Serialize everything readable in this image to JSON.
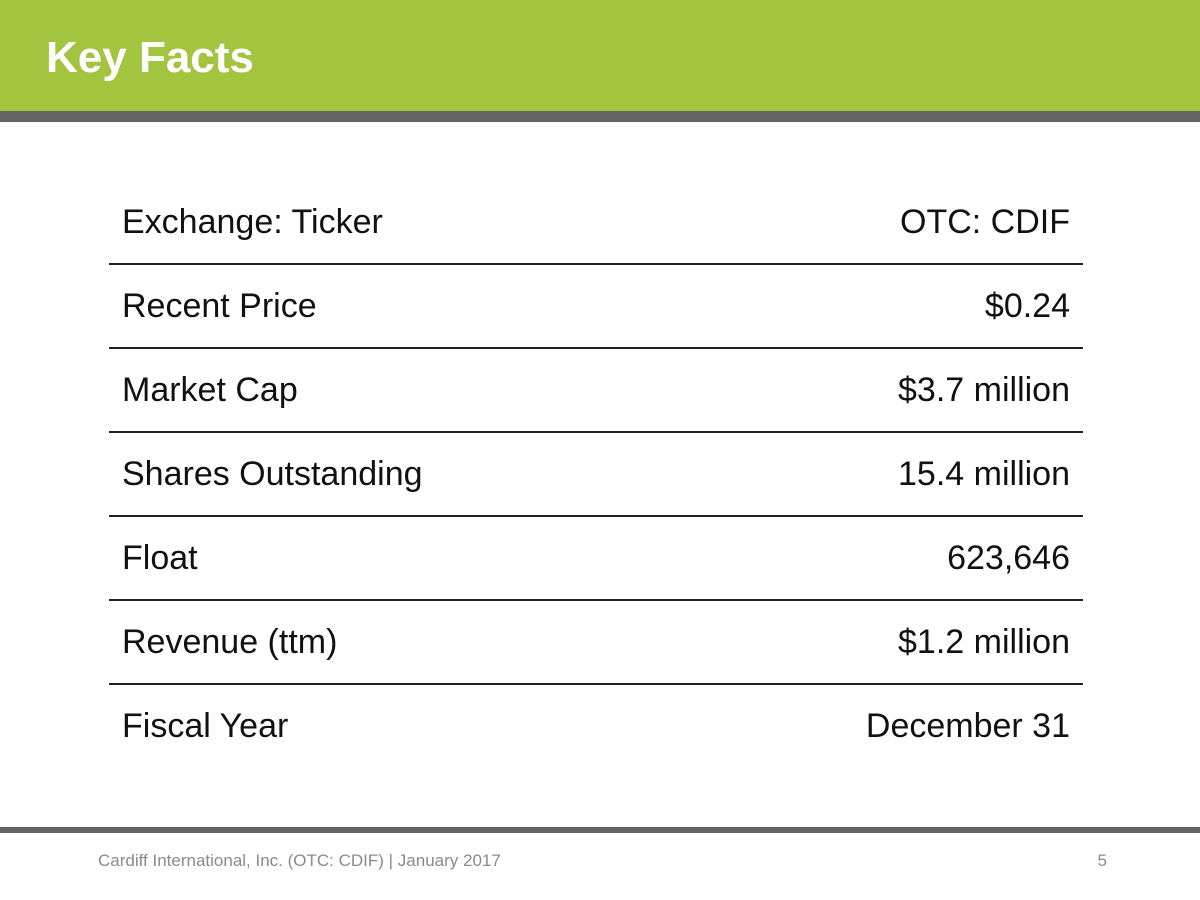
{
  "slide": {
    "title": "Key Facts",
    "footer": "Cardiff International, Inc. (OTC: CDIF) | January 2017",
    "page_number": "5"
  },
  "facts": [
    {
      "label": "Exchange: Ticker",
      "value": "OTC: CDIF"
    },
    {
      "label": "Recent Price",
      "value": "$0.24"
    },
    {
      "label": "Market Cap",
      "value": "$3.7 million"
    },
    {
      "label": "Shares Outstanding",
      "value": "15.4 million"
    },
    {
      "label": "Float",
      "value": "623,646"
    },
    {
      "label": "Revenue (ttm)",
      "value": "$1.2 million"
    },
    {
      "label": "Fiscal Year",
      "value": "December 31"
    }
  ],
  "colors": {
    "header_green": "#a2c43f",
    "rule_gray": "#646464",
    "text": "#111111",
    "footer_text": "#8a8a8a"
  }
}
